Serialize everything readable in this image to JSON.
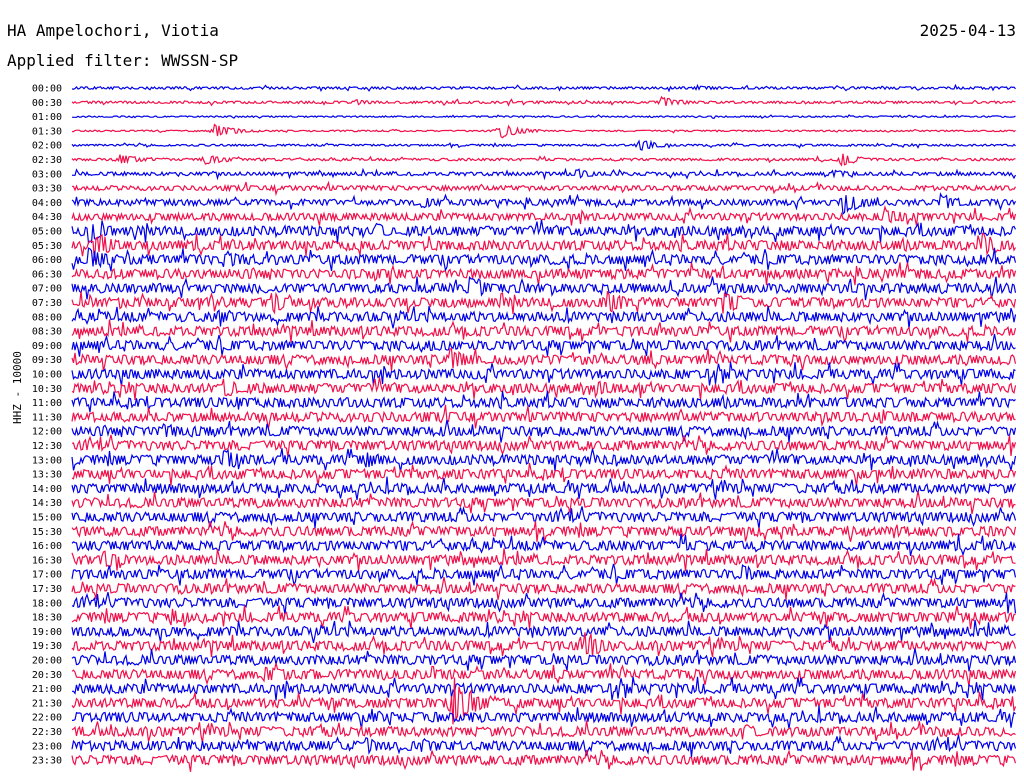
{
  "header": {
    "station": "HA Ampelochori, Viotia",
    "date": "2025-04-13",
    "filter": "Applied filter: WWSSN-SP"
  },
  "channel_label": "HHZ - 10000",
  "colors": {
    "even_trace": "#0000e8",
    "odd_trace": "#f0104a"
  },
  "chart_data": {
    "type": "line",
    "title": "HA Ampelochori, Viotia",
    "subtitle": "Applied filter: WWSSN-SP",
    "date": "2025-04-13",
    "ylabel": "HHZ - 10000",
    "rows": [
      "00:00",
      "00:30",
      "01:00",
      "01:30",
      "02:00",
      "02:30",
      "03:00",
      "03:30",
      "04:00",
      "04:30",
      "05:00",
      "05:30",
      "06:00",
      "06:30",
      "07:00",
      "07:30",
      "08:00",
      "08:30",
      "09:00",
      "09:30",
      "10:00",
      "10:30",
      "11:00",
      "11:30",
      "12:00",
      "12:30",
      "13:00",
      "13:30",
      "14:00",
      "14:30",
      "15:00",
      "15:30",
      "16:00",
      "16:30",
      "17:00",
      "17:30",
      "18:00",
      "18:30",
      "19:00",
      "19:30",
      "20:00",
      "20:30",
      "21:00",
      "21:30",
      "22:00",
      "22:30",
      "23:00",
      "23:30"
    ],
    "row_duration_minutes": 30,
    "x_range_minutes": [
      0,
      30
    ],
    "noise_level": [
      1,
      1,
      0.6,
      0.6,
      0.8,
      1,
      1.5,
      2,
      2.5,
      3,
      4,
      4,
      4,
      4,
      4,
      4,
      4,
      4,
      4,
      4,
      4,
      4,
      4,
      4,
      4,
      4,
      4,
      4,
      4,
      4,
      4,
      4,
      4,
      4,
      4,
      4,
      4,
      4,
      4,
      4,
      4,
      4,
      4,
      4,
      4,
      4,
      4,
      4
    ],
    "events": [
      {
        "row": "00:00",
        "minute": 19.8,
        "amp": 3
      },
      {
        "row": "00:30",
        "minute": 18.7,
        "amp": 6
      },
      {
        "row": "00:30",
        "minute": 9.0,
        "amp": 3
      },
      {
        "row": "01:30",
        "minute": 4.5,
        "amp": 7
      },
      {
        "row": "01:30",
        "minute": 13.6,
        "amp": 8
      },
      {
        "row": "02:00",
        "minute": 18.0,
        "amp": 6
      },
      {
        "row": "02:30",
        "minute": 1.5,
        "amp": 6
      },
      {
        "row": "02:30",
        "minute": 4.2,
        "amp": 7
      },
      {
        "row": "02:30",
        "minute": 24.4,
        "amp": 7
      },
      {
        "row": "03:00",
        "minute": 16.0,
        "amp": 6
      },
      {
        "row": "03:00",
        "minute": 24.2,
        "amp": 5
      },
      {
        "row": "04:00",
        "minute": 11.1,
        "amp": 7
      },
      {
        "row": "04:00",
        "minute": 24.5,
        "amp": 14
      },
      {
        "row": "04:00",
        "minute": 27.6,
        "amp": 10
      },
      {
        "row": "04:30",
        "minute": 25.8,
        "amp": 11
      },
      {
        "row": "05:00",
        "minute": 0.5,
        "amp": 14
      },
      {
        "row": "05:00",
        "minute": 9.6,
        "amp": 9
      },
      {
        "row": "05:30",
        "minute": 0.7,
        "amp": 16
      },
      {
        "row": "05:30",
        "minute": 28.9,
        "amp": 15
      },
      {
        "row": "06:00",
        "minute": 0.5,
        "amp": 14
      },
      {
        "row": "06:00",
        "minute": 4.8,
        "amp": 11
      },
      {
        "row": "06:30",
        "minute": 9.6,
        "amp": 8
      },
      {
        "row": "07:00",
        "minute": 12.6,
        "amp": 15
      },
      {
        "row": "07:30",
        "minute": 6.3,
        "amp": 13
      },
      {
        "row": "07:30",
        "minute": 17.0,
        "amp": 13
      },
      {
        "row": "07:30",
        "minute": 20.7,
        "amp": 14
      },
      {
        "row": "08:00",
        "minute": 4.6,
        "amp": 8
      },
      {
        "row": "09:00",
        "minute": 11.3,
        "amp": 9
      },
      {
        "row": "09:30",
        "minute": 12.0,
        "amp": 13
      },
      {
        "row": "10:30",
        "minute": 4.8,
        "amp": 12
      },
      {
        "row": "10:30",
        "minute": 16.6,
        "amp": 10
      },
      {
        "row": "11:00",
        "minute": 5.2,
        "amp": 9
      },
      {
        "row": "11:30",
        "minute": 25.6,
        "amp": 10
      },
      {
        "row": "12:00",
        "minute": 2.9,
        "amp": 11
      },
      {
        "row": "13:00",
        "minute": 4.8,
        "amp": 14
      },
      {
        "row": "13:00",
        "minute": 9.3,
        "amp": 10
      },
      {
        "row": "16:30",
        "minute": 1.0,
        "amp": 12
      },
      {
        "row": "17:00",
        "minute": 21.3,
        "amp": 10
      },
      {
        "row": "18:30",
        "minute": 3.1,
        "amp": 10
      },
      {
        "row": "19:30",
        "minute": 16.3,
        "amp": 16
      },
      {
        "row": "20:30",
        "minute": 6.1,
        "amp": 11
      },
      {
        "row": "20:30",
        "minute": 11.4,
        "amp": 9
      },
      {
        "row": "21:30",
        "minute": 12.1,
        "amp": 28
      },
      {
        "row": "22:00",
        "minute": 9.5,
        "amp": 9
      },
      {
        "row": "22:30",
        "minute": 21.4,
        "amp": 8
      },
      {
        "row": "23:00",
        "minute": 9.3,
        "amp": 9
      },
      {
        "row": "23:00",
        "minute": 11.1,
        "amp": 9
      }
    ]
  }
}
